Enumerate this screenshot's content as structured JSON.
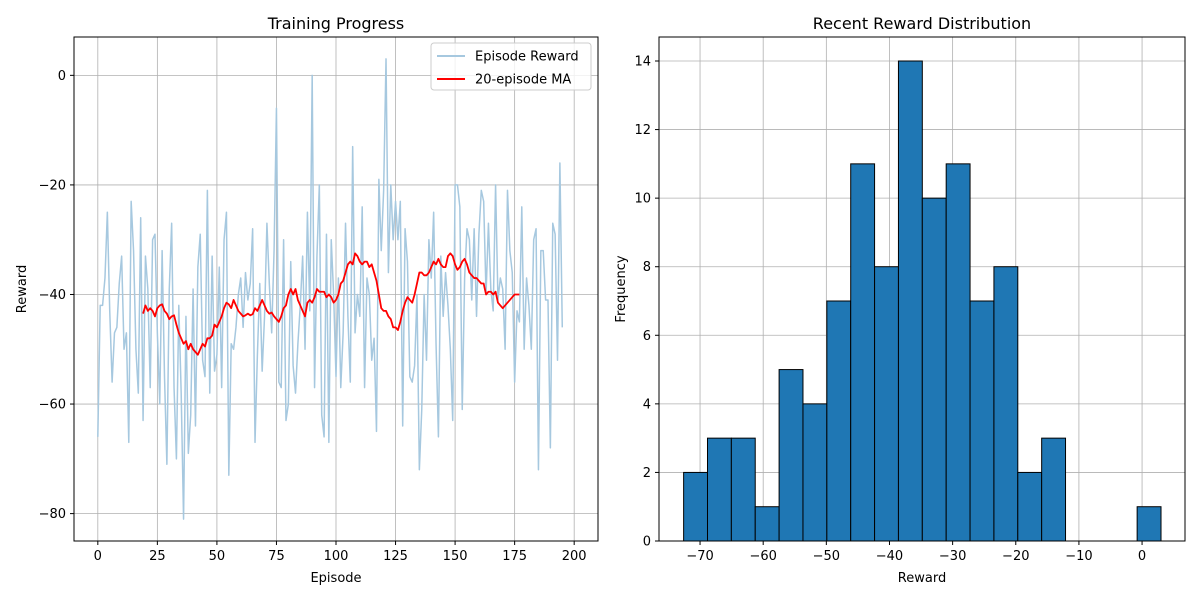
{
  "chart_data": [
    {
      "type": "line",
      "title": "Training Progress",
      "xlabel": "Episode",
      "ylabel": "Reward",
      "xlim": [
        -10,
        210
      ],
      "ylim": [
        -85,
        7
      ],
      "xticks": [
        0,
        25,
        50,
        75,
        100,
        125,
        150,
        175,
        200
      ],
      "yticks": [
        -80,
        -60,
        -40,
        -20,
        0
      ],
      "grid": true,
      "legend_position": "upper right",
      "series": [
        {
          "name": "Episode Reward",
          "color": "#a6c8df",
          "x_start": 0,
          "values": [
            -66,
            -42,
            -42,
            -37,
            -25,
            -43,
            -56,
            -47,
            -46,
            -38,
            -33,
            -50,
            -47,
            -67,
            -23,
            -32,
            -50,
            -58,
            -26,
            -63,
            -33,
            -39,
            -57,
            -30,
            -29,
            -47,
            -60,
            -32,
            -55,
            -71,
            -39,
            -27,
            -57,
            -70,
            -42,
            -58,
            -81,
            -44,
            -69,
            -62,
            -39,
            -64,
            -35,
            -29,
            -52,
            -55,
            -21,
            -58,
            -33,
            -54,
            -51,
            -35,
            -57,
            -30,
            -25,
            -73,
            -49,
            -50,
            -46,
            -40,
            -37,
            -46,
            -36,
            -41,
            -38,
            -28,
            -67,
            -51,
            -38,
            -54,
            -44,
            -27,
            -38,
            -47,
            -32,
            -6,
            -56,
            -57,
            -30,
            -63,
            -60,
            -34,
            -53,
            -58,
            -49,
            -42,
            -33,
            -50,
            -25,
            -43,
            0,
            -57,
            -33,
            -20,
            -62,
            -66,
            -29,
            -67,
            -30,
            -40,
            -55,
            -37,
            -57,
            -47,
            -27,
            -44,
            -56,
            -13,
            -47,
            -40,
            -44,
            -24,
            -57,
            -37,
            -40,
            -52,
            -48,
            -65,
            -19,
            -32,
            -21,
            3,
            -36,
            -20,
            -30,
            -23,
            -30,
            -23,
            -64,
            -28,
            -34,
            -55,
            -56,
            -53,
            -40,
            -72,
            -61,
            -40,
            -52,
            -30,
            -37,
            -25,
            -49,
            -66,
            -33,
            -44,
            -36,
            -42,
            -50,
            -63,
            -20,
            -20,
            -24,
            -61,
            -37,
            -28,
            -30,
            -41,
            -28,
            -44,
            -29,
            -21,
            -23,
            -40,
            -27,
            -39,
            -43,
            -20,
            -41,
            -37,
            -39,
            -50,
            -21,
            -32,
            -36,
            -56,
            -43,
            -45,
            -24,
            -50,
            -37,
            -42,
            -50,
            -30,
            -28,
            -72,
            -32,
            -32,
            -41,
            -41,
            -68,
            -27,
            -29,
            -52,
            -16,
            -46
          ]
        },
        {
          "name": "20-episode MA",
          "color": "#ff0000",
          "x_start": 19,
          "values": [
            -43.5,
            -42,
            -43,
            -42.5,
            -43,
            -44,
            -42.5,
            -42,
            -41.8,
            -43,
            -43.5,
            -44.5,
            -44,
            -43.8,
            -45.5,
            -47,
            -48,
            -49,
            -48.5,
            -50,
            -49,
            -50,
            -50.5,
            -51,
            -50,
            -49,
            -49.5,
            -48,
            -48,
            -47.5,
            -45.5,
            -46,
            -45,
            -44,
            -42.5,
            -41.5,
            -41.8,
            -42.5,
            -41,
            -42,
            -43,
            -43.5,
            -44,
            -43.8,
            -43.5,
            -43.8,
            -43.6,
            -42.5,
            -43,
            -42,
            -41,
            -42,
            -43,
            -43.5,
            -43.3,
            -44,
            -44.5,
            -45,
            -44,
            -42.5,
            -42,
            -40,
            -39,
            -40,
            -39,
            -41,
            -42,
            -43,
            -44,
            -41.5,
            -41,
            -41.5,
            -40.5,
            -39,
            -39.5,
            -39.5,
            -39.5,
            -40.5,
            -40,
            -40.5,
            -41.5,
            -41,
            -40,
            -38,
            -37.5,
            -36,
            -34.5,
            -34,
            -34.5,
            -32.5,
            -33,
            -34,
            -34.5,
            -34,
            -34,
            -35,
            -34.5,
            -36,
            -37.5,
            -40,
            -42.5,
            -43,
            -43,
            -44,
            -44.5,
            -46,
            -46,
            -46.5,
            -45,
            -43,
            -41.5,
            -40.5,
            -41,
            -41.5,
            -40,
            -38,
            -36,
            -36,
            -36.5,
            -36.5,
            -36,
            -35,
            -34,
            -34.5,
            -33.5,
            -34.5,
            -35,
            -35,
            -33,
            -32.5,
            -33,
            -34.5,
            -35.5,
            -35,
            -34,
            -33.5,
            -34.5,
            -36,
            -36.5,
            -37,
            -37,
            -37.5,
            -38,
            -38,
            -40,
            -39.5,
            -39.5,
            -40,
            -39.5,
            -41.5,
            -42,
            -42.5,
            -42,
            -41.5,
            -41,
            -40.5,
            -40,
            -40,
            -40
          ]
        }
      ]
    },
    {
      "type": "bar",
      "title": "Recent Reward Distribution",
      "xlabel": "Reward",
      "ylabel": "Frequency",
      "xlim": [
        -76.5,
        6.8
      ],
      "ylim": [
        0,
        14.7
      ],
      "xticks": [
        -70,
        -60,
        -50,
        -40,
        -30,
        -20,
        -10,
        0
      ],
      "yticks": [
        0,
        2,
        4,
        6,
        8,
        10,
        12,
        14
      ],
      "grid": true,
      "bar_color": "#1f77b4",
      "edge_color": "#000000",
      "bin_start": -72.6,
      "bin_width": 3.78,
      "counts": [
        2,
        3,
        3,
        1,
        5,
        4,
        7,
        11,
        8,
        14,
        10,
        11,
        7,
        8,
        2,
        3,
        0,
        0,
        0,
        1
      ]
    }
  ]
}
